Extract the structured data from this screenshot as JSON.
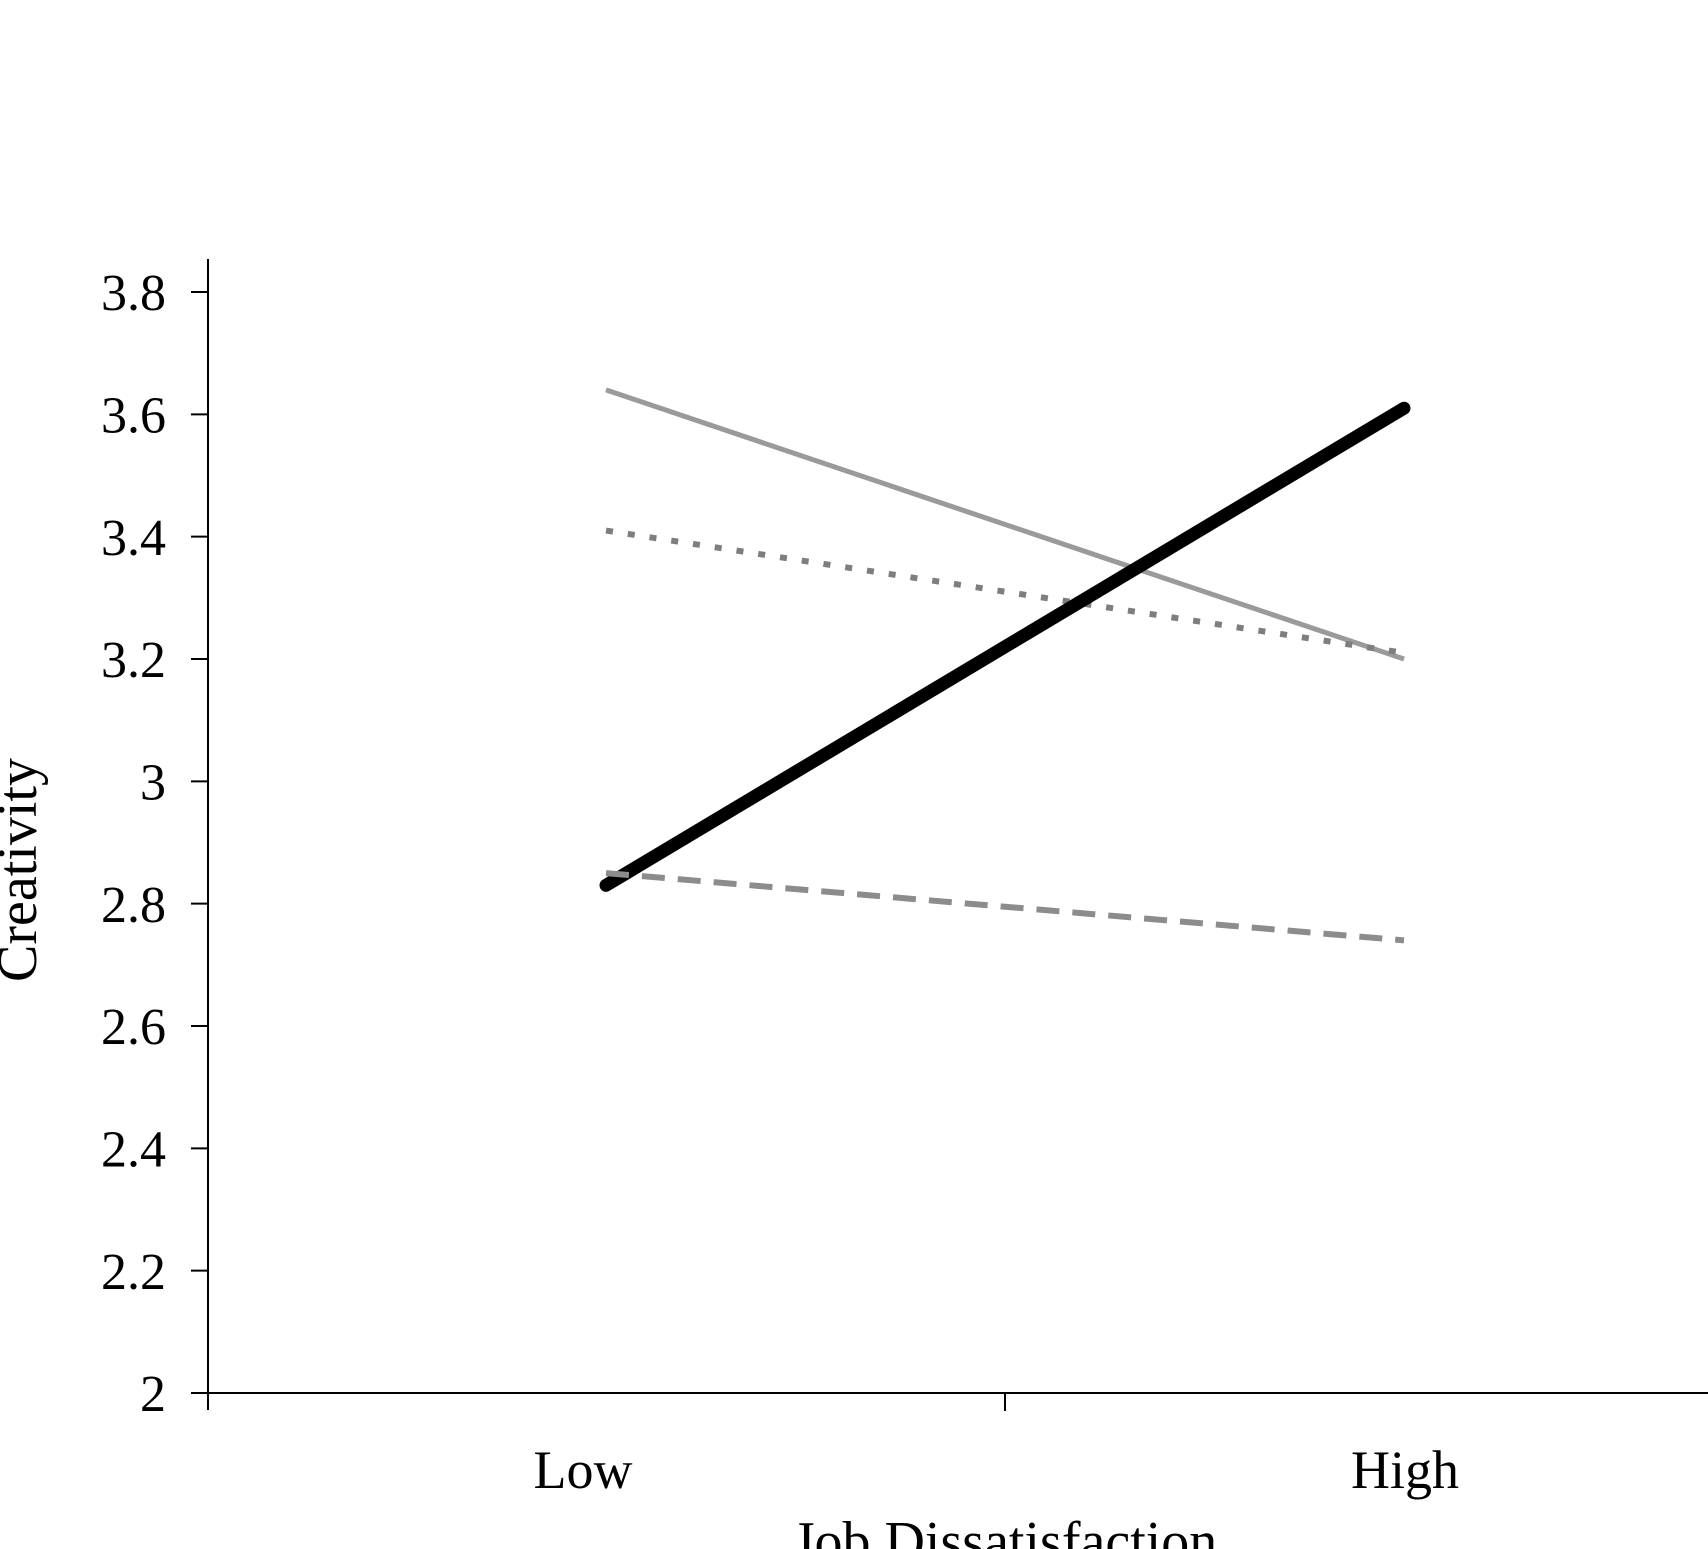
{
  "figure": {
    "background_color": "#ffffff",
    "title": "",
    "legend": "none",
    "grid": false
  },
  "axis": {
    "color": "#000000",
    "text_color": "#000000"
  },
  "chart_data": {
    "type": "line",
    "title": "",
    "xlabel": "Job Dissatisfaction",
    "ylabel": "Creativity",
    "categories": [
      "Low",
      "High"
    ],
    "ylim": [
      2,
      3.8
    ],
    "yticks": [
      2,
      2.2,
      2.4,
      2.6,
      2.8,
      3,
      3.2,
      3.4,
      3.6,
      3.8
    ],
    "ytick_labels": [
      "2",
      "2.2",
      "2.4",
      "2.6",
      "2.8",
      "3",
      "3.2",
      "3.4",
      "3.6",
      "3.8"
    ],
    "grid": false,
    "legend_position": "none",
    "series": [
      {
        "name": "thin-solid-gray-line",
        "style": "solid",
        "color": "#9A9A9A",
        "stroke_width": 5,
        "linecap": "butt",
        "dash": "",
        "values": [
          3.64,
          3.2
        ]
      },
      {
        "name": "dotted-gray-line",
        "style": "dotted",
        "color": "#7E7E7E",
        "stroke_width": 6,
        "linecap": "butt",
        "dash": "7 15",
        "values": [
          3.41,
          3.21
        ]
      },
      {
        "name": "thick-solid-black-line",
        "style": "solid",
        "color": "#000000",
        "stroke_width": 13,
        "linecap": "round",
        "dash": "",
        "values": [
          2.83,
          3.61
        ]
      },
      {
        "name": "dashed-gray-line",
        "style": "dashed",
        "color": "#8C8C8C",
        "stroke_width": 6,
        "linecap": "butt",
        "dash": "23 13",
        "values": [
          2.85,
          2.74
        ]
      }
    ]
  }
}
